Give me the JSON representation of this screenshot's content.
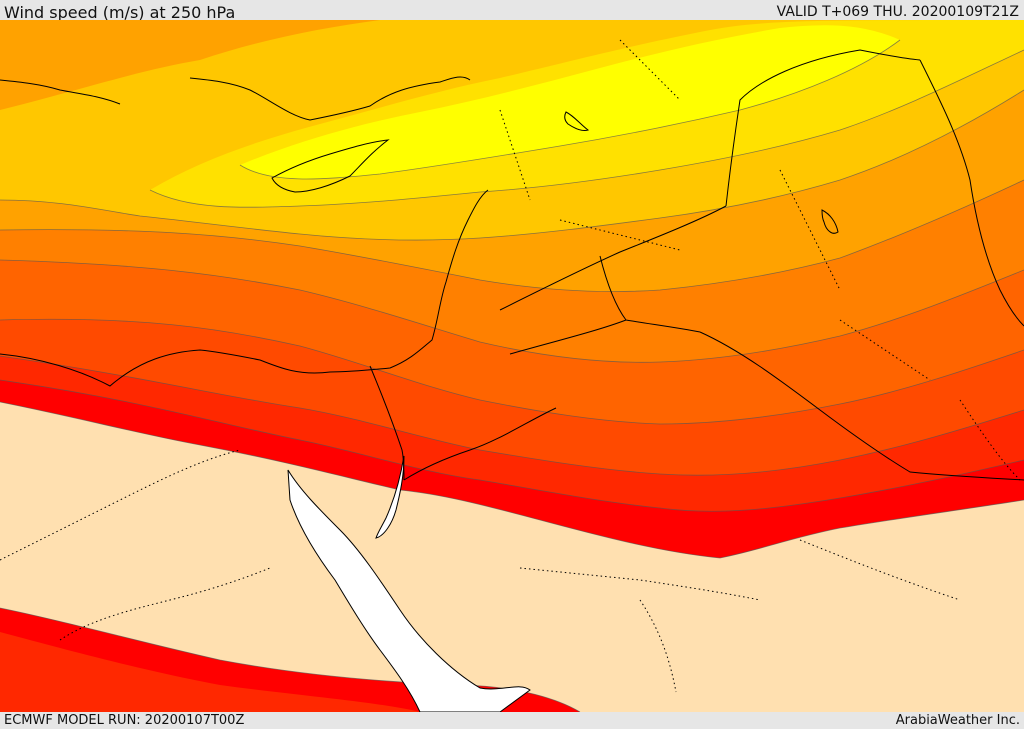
{
  "header": {
    "title": "Wind speed (m/s) at 250 hPa",
    "valid_time": "VALID T+069 THU. 20200109T21Z"
  },
  "footer": {
    "model_run": "ECMWF MODEL RUN: 20200107T00Z",
    "credit": "ArabiaWeather Inc."
  },
  "palette": {
    "lightest": "#ffff00",
    "light_yellow": "#ffe100",
    "gold": "#ffc700",
    "amber": "#ffa200",
    "orange": "#ff8000",
    "dark_orange": "#ff6400",
    "red_orange": "#ff4a00",
    "red": "#ff2800",
    "deep_red": "#ff0000",
    "background_land": "#ffe0b0",
    "sea": "#ffffff"
  }
}
